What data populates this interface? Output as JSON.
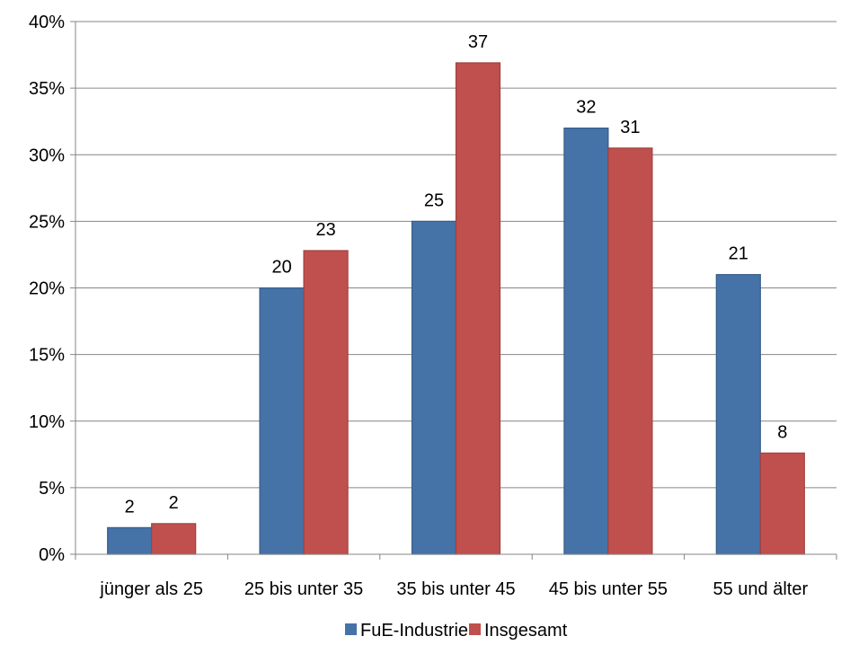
{
  "chart_data": {
    "type": "bar",
    "categories": [
      "jünger als 25",
      "25 bis unter 35",
      "35 bis unter 45",
      "45 bis unter 55",
      "55 und älter"
    ],
    "series": [
      {
        "name": "FuE-Industrie",
        "values": [
          2,
          20,
          25,
          32,
          21
        ],
        "labels": [
          "2",
          "20",
          "25",
          "32",
          "21"
        ],
        "color": "#4572A7"
      },
      {
        "name": "Insgesamt",
        "values": [
          2.3,
          22.8,
          36.9,
          30.5,
          7.6
        ],
        "labels": [
          "2",
          "23",
          "37",
          "31",
          "8"
        ],
        "color": "#C0504D"
      }
    ],
    "ylim": [
      0,
      40
    ],
    "yticks": [
      0,
      5,
      10,
      15,
      20,
      25,
      30,
      35,
      40
    ],
    "ytick_labels": [
      "0%",
      "5%",
      "10%",
      "15%",
      "20%",
      "25%",
      "30%",
      "35%",
      "40%"
    ],
    "grid": true,
    "legend_position": "bottom"
  }
}
